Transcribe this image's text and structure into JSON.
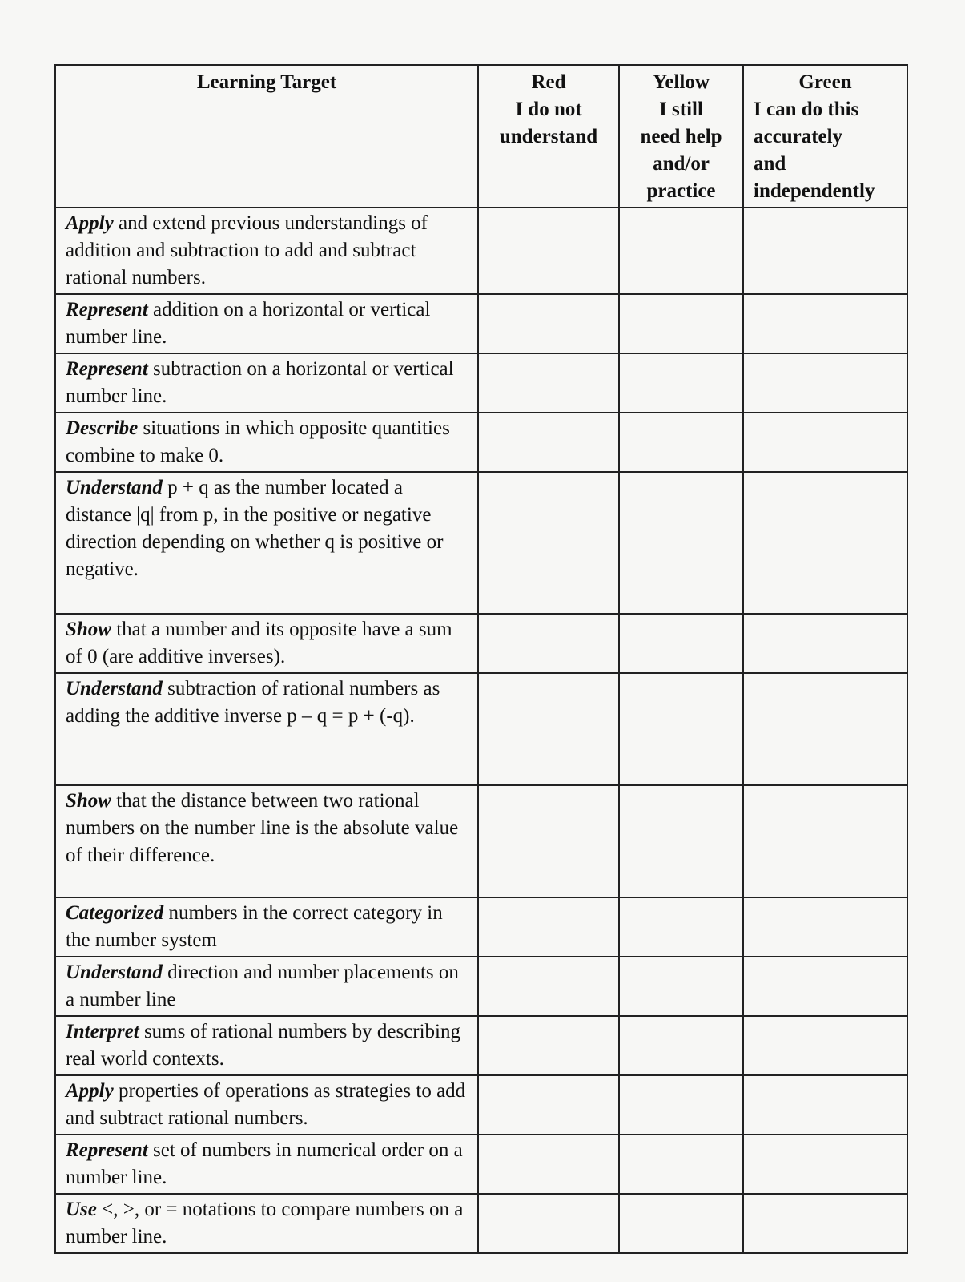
{
  "header": {
    "learning_target": "Learning Target",
    "red": [
      "Red",
      "I do not",
      "understand"
    ],
    "yellow": [
      "Yellow",
      "I still",
      "need help",
      "and/or",
      "practice"
    ],
    "green": [
      "Green",
      "I can do this",
      "accurately",
      "and",
      "independently"
    ]
  },
  "rows": [
    {
      "verb": "Apply",
      "text": " and extend previous understandings of addition and subtraction to add and subtract rational numbers."
    },
    {
      "verb": "Represent",
      "text": " addition on a horizontal or vertical number line."
    },
    {
      "verb": "Represent",
      "text": " subtraction on a horizontal or vertical number line."
    },
    {
      "verb": "Describe",
      "text": " situations in which opposite quantities combine to make 0."
    },
    {
      "verb": "Understand",
      "text": " p + q as the number located a distance |q| from p, in the positive or negative direction depending on whether q is positive or negative."
    },
    {
      "verb": "Show",
      "text": " that a number and its opposite have a sum of 0 (are additive inverses)."
    },
    {
      "verb": "Understand",
      "text": " subtraction of rational numbers as adding the additive inverse p – q = p + (-q)."
    },
    {
      "verb": "Show",
      "text": " that the distance between two rational numbers on the number line is the absolute value of their difference."
    },
    {
      "verb": "Categorized",
      "text": " numbers in the correct category in the number system"
    },
    {
      "verb": "Understand",
      "text": " direction and number placements on a number line"
    },
    {
      "verb": "Interpret",
      "text": " sums of rational numbers by describing real world contexts."
    },
    {
      "verb": "Apply",
      "text": " properties of operations as strategies to add and subtract rational numbers."
    },
    {
      "verb": "Represent",
      "text": " set of numbers in numerical order on a number line."
    },
    {
      "verb": "Use",
      "text": " <, >, or = notations to compare numbers on a number line."
    }
  ]
}
